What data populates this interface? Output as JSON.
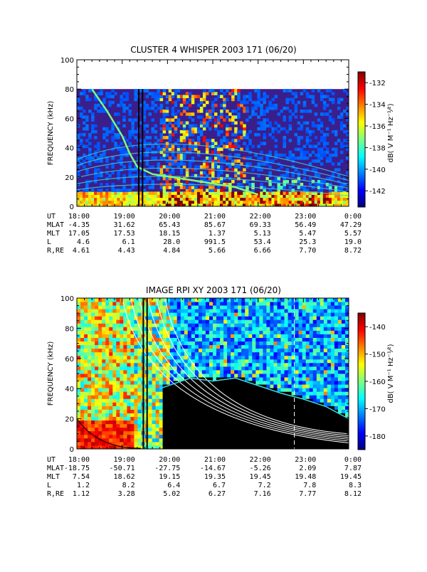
{
  "panels": [
    {
      "title": "CLUSTER 4 WHISPER 2003 171 (06/20)",
      "ylabel": "FREQUENCY (kHz)",
      "yticks": [
        "0",
        "20",
        "40",
        "60",
        "80",
        "100"
      ],
      "colorbar_label": "dB( V M⁻¹ Hz⁻¹⁄²)",
      "colorbar_ticks": [
        "-132",
        "-134",
        "-136",
        "-138",
        "-140",
        "-142"
      ],
      "ephemeris": {
        "labels": [
          "UT",
          "MLAT",
          "MLT",
          "L",
          "R,RE"
        ],
        "rows": [
          [
            "18:00",
            "19:00",
            "20:00",
            "21:00",
            "22:00",
            "23:00",
            "0:00"
          ],
          [
            "-4.35",
            "31.62",
            "65.43",
            "85.67",
            "69.33",
            "56.49",
            "47.29"
          ],
          [
            "17.05",
            "17.53",
            "18.15",
            "1.37",
            "5.13",
            "5.47",
            "5.57"
          ],
          [
            "4.6",
            "6.1",
            "28.0",
            "991.5",
            "53.4",
            "25.3",
            "19.0"
          ],
          [
            "4.61",
            "4.43",
            "4.84",
            "5.66",
            "6.66",
            "7.70",
            "8.72"
          ]
        ]
      }
    },
    {
      "title": "IMAGE RPI XY 2003 171 (06/20)",
      "ylabel": "FREQUENCY (kHz)",
      "yticks": [
        "0",
        "20",
        "40",
        "60",
        "80",
        "100"
      ],
      "colorbar_label": "dB( V M⁻¹ Hz⁻¹⁄²)",
      "colorbar_ticks": [
        "-140",
        "-150",
        "-160",
        "-170",
        "-180"
      ],
      "ephemeris": {
        "labels": [
          "UT",
          "MLAT",
          "MLT",
          "L",
          "R,RE"
        ],
        "rows": [
          [
            "18:00",
            "19:00",
            "20:00",
            "21:00",
            "22:00",
            "23:00",
            "0:00"
          ],
          [
            "-18.75",
            "-50.71",
            "-27.75",
            "-14.67",
            "-5.26",
            "2.09",
            "7.87"
          ],
          [
            "7.54",
            "18.62",
            "19.15",
            "19.35",
            "19.45",
            "19.48",
            "19.45"
          ],
          [
            "1.2",
            "8.2",
            "6.4",
            "6.7",
            "7.2",
            "7.8",
            "8.3"
          ],
          [
            "1.12",
            "3.28",
            "5.02",
            "6.27",
            "7.16",
            "7.77",
            "8.12"
          ]
        ]
      }
    }
  ],
  "chart_data": [
    {
      "type": "heatmap",
      "title": "CLUSTER 4 WHISPER 2003 171 (06/20)",
      "xlabel": "UT",
      "ylabel": "FREQUENCY (kHz)",
      "x_range": [
        "18:00",
        "0:00"
      ],
      "ylim": [
        0,
        100
      ],
      "data_ceiling_khz": 80,
      "colorbar": {
        "label": "dB( V M⁻¹ Hz⁻¹⁄²)",
        "range": [
          -143.5,
          -131
        ],
        "ticks": [
          -132,
          -134,
          -136,
          -138,
          -140,
          -142
        ]
      },
      "marker_lines_ut": [
        "19:22",
        "19:27"
      ],
      "features": [
        {
          "name": "upper hybrid emission",
          "points_ut_khz": [
            [
              "18:20",
              80
            ],
            [
              "18:40",
              65
            ],
            [
              "19:00",
              48
            ],
            [
              "19:10",
              36
            ],
            [
              "19:20",
              27
            ],
            [
              "19:40",
              22
            ],
            [
              "20:30",
              18
            ],
            [
              "21:30",
              13
            ],
            [
              "22:00",
              8
            ]
          ]
        },
        {
          "name": "harmonic bands",
          "count": 6
        },
        {
          "name": "broadband bursts",
          "ut_range": [
            "19:50",
            "21:50"
          ],
          "khz_range": [
            20,
            80
          ]
        }
      ]
    },
    {
      "type": "heatmap",
      "title": "IMAGE RPI XY 2003 171 (06/20)",
      "xlabel": "UT",
      "ylabel": "FREQUENCY (kHz)",
      "x_range": [
        "18:00",
        "0:00"
      ],
      "ylim": [
        0,
        100
      ],
      "colorbar": {
        "label": "dB( V M⁻¹ Hz⁻¹⁄²)",
        "range": [
          -185,
          -135
        ],
        "ticks": [
          -140,
          -150,
          -160,
          -170,
          -180
        ]
      },
      "marker_lines_ut": [
        "19:28",
        "19:33"
      ],
      "dashed_line_ut": "22:48",
      "features": [
        {
          "name": "plasma frequency boundary",
          "points_ut_khz": [
            [
              "19:50",
              40
            ],
            [
              "20:30",
              47
            ],
            [
              "21:00",
              45
            ],
            [
              "21:30",
              47
            ],
            [
              "22:00",
              42
            ],
            [
              "22:30",
              37
            ],
            [
              "23:00",
              33
            ],
            [
              "23:30",
              28
            ],
            [
              "0:00",
              20
            ]
          ]
        },
        {
          "name": "model curves",
          "count": 6
        }
      ]
    }
  ]
}
